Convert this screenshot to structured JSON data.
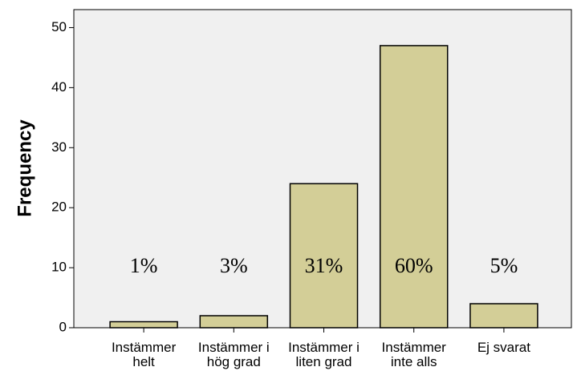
{
  "chart_data": {
    "type": "bar",
    "y_label": "Frequency",
    "categories": [
      [
        "Instämmer",
        "helt"
      ],
      [
        "Instämmer i",
        "hög grad"
      ],
      [
        "Instämmer i",
        "liten grad"
      ],
      [
        "Instämmer",
        "inte alls"
      ],
      [
        "Ej svarat"
      ]
    ],
    "values": [
      1,
      2,
      24,
      47,
      4
    ],
    "annotations": [
      "1%",
      "3%",
      "31%",
      "60%",
      "5%"
    ],
    "color": "#d3ce97",
    "ylim": [
      0,
      53
    ],
    "yticks": [
      0,
      10,
      20,
      30,
      40,
      50
    ]
  }
}
